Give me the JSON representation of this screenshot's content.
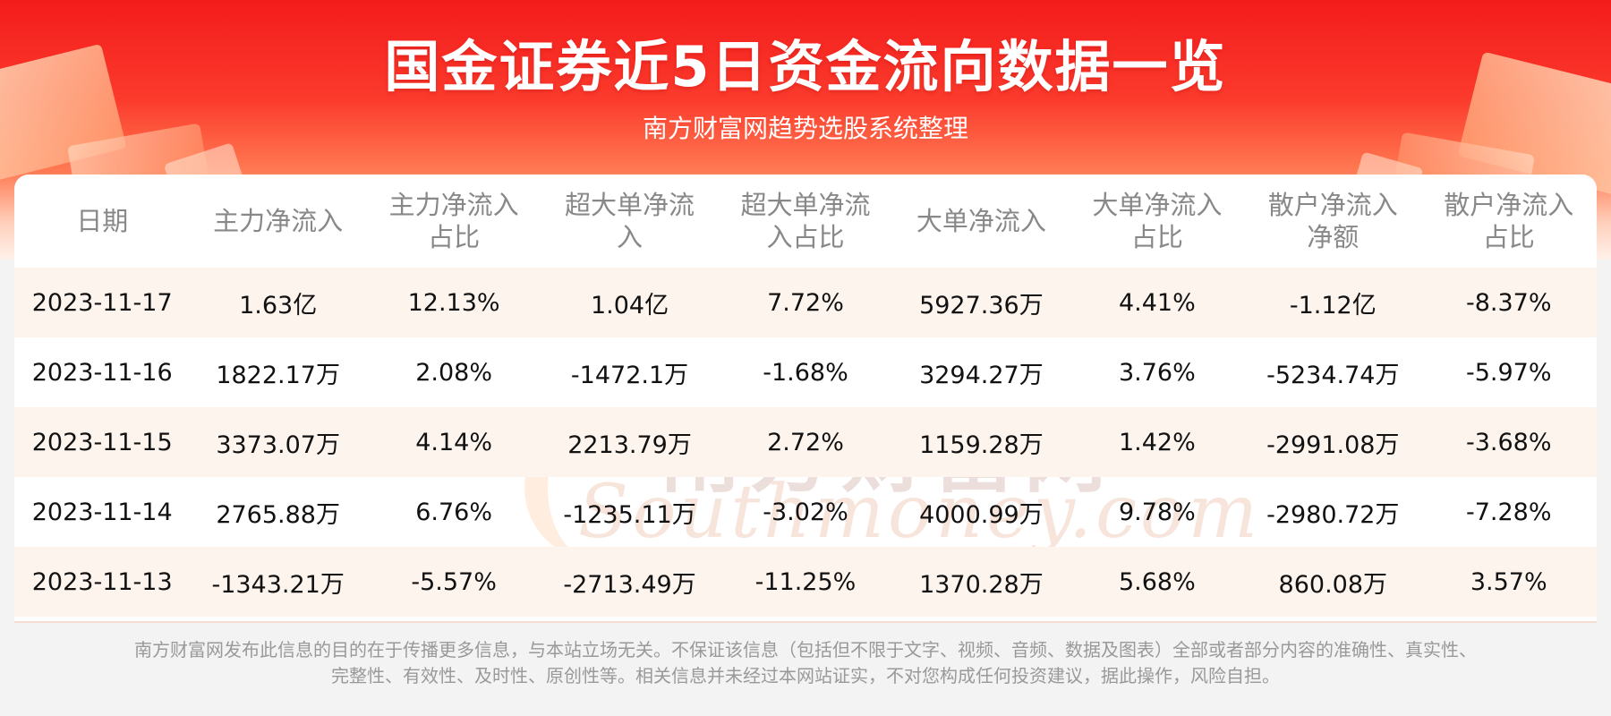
{
  "header": {
    "title": "国金证券近5日资金流向数据一览",
    "subtitle": "南方财富网趋势选股系统整理"
  },
  "watermark": {
    "cn": "南方财富网",
    "en": "Southmoney.com"
  },
  "table": {
    "columns": [
      [
        "日期"
      ],
      [
        "主力净流入"
      ],
      [
        "主力净流入",
        "占比"
      ],
      [
        "超大单净流",
        "入"
      ],
      [
        "超大单净流",
        "入占比"
      ],
      [
        "大单净流入"
      ],
      [
        "大单净流入",
        "占比"
      ],
      [
        "散户净流入",
        "净额"
      ],
      [
        "散户净流入",
        "占比"
      ]
    ],
    "rows": [
      [
        "2023-11-17",
        "1.63亿",
        "12.13%",
        "1.04亿",
        "7.72%",
        "5927.36万",
        "4.41%",
        "-1.12亿",
        "-8.37%"
      ],
      [
        "2023-11-16",
        "1822.17万",
        "2.08%",
        "-1472.1万",
        "-1.68%",
        "3294.27万",
        "3.76%",
        "-5234.74万",
        "-5.97%"
      ],
      [
        "2023-11-15",
        "3373.07万",
        "4.14%",
        "2213.79万",
        "2.72%",
        "1159.28万",
        "1.42%",
        "-2991.08万",
        "-3.68%"
      ],
      [
        "2023-11-14",
        "2765.88万",
        "6.76%",
        "-1235.11万",
        "-3.02%",
        "4000.99万",
        "9.78%",
        "-2980.72万",
        "-7.28%"
      ],
      [
        "2023-11-13",
        "-1343.21万",
        "-5.57%",
        "-2713.49万",
        "-11.25%",
        "1370.28万",
        "5.68%",
        "860.08万",
        "3.57%"
      ]
    ]
  },
  "footer": {
    "line1": "南方财富网发布此信息的目的在于传播更多信息，与本站立场无关。不保证该信息（包括但不限于文字、视频、音频、数据及图表）全部或者部分内容的准确性、真实性、",
    "line2": "完整性、有效性、及时性、原创性等。相关信息并未经过本网站证实，不对您构成任何投资建议，据此操作，风险自担。"
  },
  "colors": {
    "banner_red": "#f31c1c",
    "row_stripe": "#fdf4ee",
    "header_text": "#888888"
  }
}
